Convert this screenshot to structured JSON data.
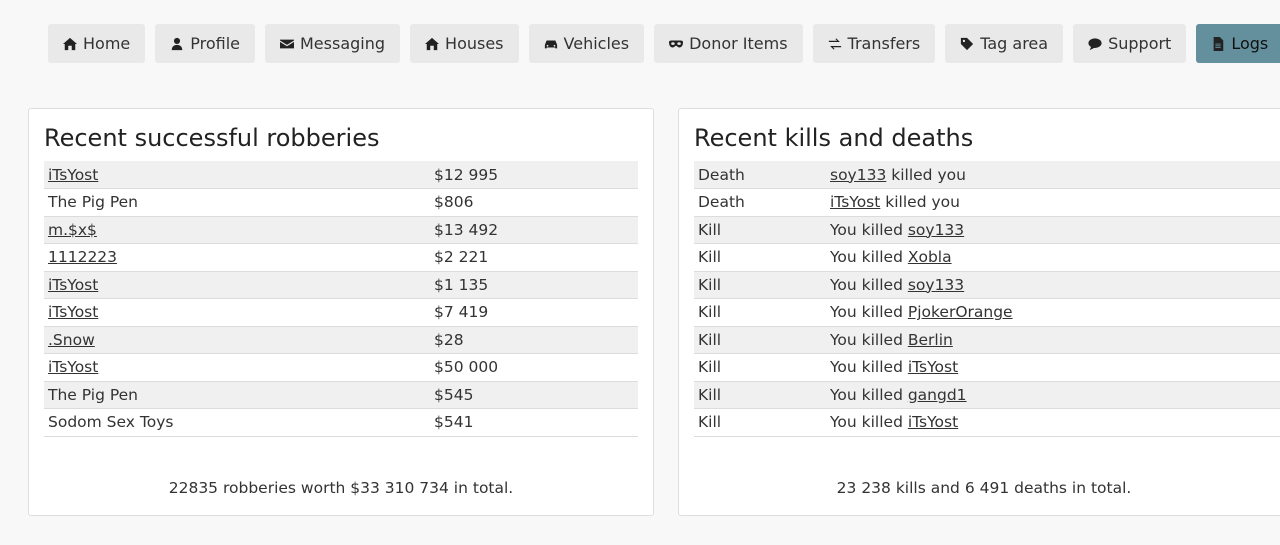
{
  "nav": [
    {
      "label": "Home",
      "icon": "home-icon"
    },
    {
      "label": "Profile",
      "icon": "user-icon"
    },
    {
      "label": "Messaging",
      "icon": "envelope-icon"
    },
    {
      "label": "Houses",
      "icon": "home-icon"
    },
    {
      "label": "Vehicles",
      "icon": "car-icon"
    },
    {
      "label": "Donor Items",
      "icon": "mask-icon"
    },
    {
      "label": "Transfers",
      "icon": "transfer-arrows-icon"
    },
    {
      "label": "Tag area",
      "icon": "tag-icon"
    },
    {
      "label": "Support",
      "icon": "chat-bubble-icon"
    },
    {
      "label": "Logs",
      "icon": "document-icon",
      "active": true
    }
  ],
  "colors": {
    "active_tab": "#63909c",
    "tab": "#e9e9e9",
    "stripe": "#f0f0f0"
  },
  "robberies": {
    "title": "Recent successful robberies",
    "rows": [
      {
        "name": "iTsYost",
        "link": true,
        "amount": "$12 995"
      },
      {
        "name": "The Pig Pen",
        "link": false,
        "amount": "$806"
      },
      {
        "name": "m.$x$",
        "link": true,
        "amount": "$13 492"
      },
      {
        "name": "1112223",
        "link": true,
        "amount": "$2 221"
      },
      {
        "name": "iTsYost",
        "link": true,
        "amount": "$1 135"
      },
      {
        "name": "iTsYost",
        "link": true,
        "amount": "$7 419"
      },
      {
        "name": ".Snow",
        "link": true,
        "amount": "$28"
      },
      {
        "name": "iTsYost",
        "link": true,
        "amount": "$50 000"
      },
      {
        "name": "The Pig Pen",
        "link": false,
        "amount": "$545"
      },
      {
        "name": "Sodom Sex Toys",
        "link": false,
        "amount": "$541"
      }
    ],
    "total": "22835 robberies worth $33 310 734 in total."
  },
  "kills": {
    "title": "Recent kills and deaths",
    "rows": [
      {
        "type": "Death",
        "prefix": "",
        "player": "soy133",
        "suffix": " killed you"
      },
      {
        "type": "Death",
        "prefix": "",
        "player": "iTsYost",
        "suffix": " killed you"
      },
      {
        "type": "Kill",
        "prefix": "You killed ",
        "player": "soy133",
        "suffix": ""
      },
      {
        "type": "Kill",
        "prefix": "You killed ",
        "player": "Xobla",
        "suffix": ""
      },
      {
        "type": "Kill",
        "prefix": "You killed ",
        "player": "soy133",
        "suffix": ""
      },
      {
        "type": "Kill",
        "prefix": "You killed ",
        "player": "PjokerOrange",
        "suffix": ""
      },
      {
        "type": "Kill",
        "prefix": "You killed ",
        "player": "Berlin",
        "suffix": ""
      },
      {
        "type": "Kill",
        "prefix": "You killed ",
        "player": "iTsYost",
        "suffix": ""
      },
      {
        "type": "Kill",
        "prefix": "You killed ",
        "player": "gangd1",
        "suffix": ""
      },
      {
        "type": "Kill",
        "prefix": "You killed ",
        "player": "iTsYost",
        "suffix": ""
      }
    ],
    "total": "23 238 kills and 6 491 deaths in total."
  }
}
